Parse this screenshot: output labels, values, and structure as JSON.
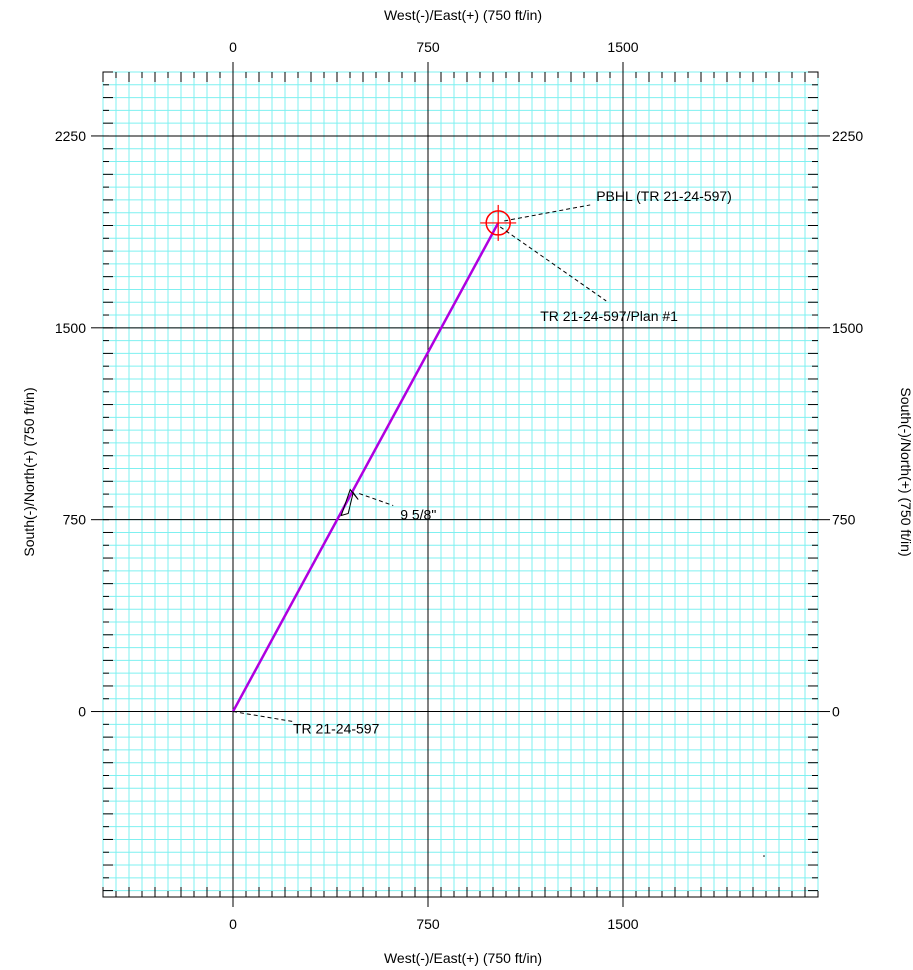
{
  "chart_data": {
    "type": "line",
    "title": "",
    "xlabel_top": "West(-)/East(+) (750 ft/in)",
    "xlabel_bottom": "West(-)/East(+) (750 ft/in)",
    "ylabel_left": "South(-)/North(+) (750 ft/in)",
    "ylabel_right": "South(-)/North(+) (750 ft/in)",
    "xlim": [
      -500,
      2250
    ],
    "ylim": [
      -725,
      2500
    ],
    "xticks": [
      0,
      750,
      1500
    ],
    "yticks": [
      0,
      750,
      1500,
      2250
    ],
    "grid": true,
    "colors": {
      "grid_minor": "#7ff0f0",
      "grid_major": "#000000",
      "well_path": "#b000e0",
      "target": "#ff0000"
    },
    "series": [
      {
        "name": "TR 21-24-597/Plan #1",
        "x": [
          0,
          1020
        ],
        "y": [
          0,
          1910
        ]
      }
    ],
    "annotations": [
      {
        "text": "TR 21-24-597",
        "kind": "surface-location",
        "x": 0,
        "y": 0
      },
      {
        "text": "9 5/8\"",
        "kind": "casing-point",
        "x": 470,
        "y": 860
      },
      {
        "text": "PBHL (TR 21-24-597)",
        "kind": "target",
        "x": 1020,
        "y": 1910
      },
      {
        "text": "TR 21-24-597/Plan #1",
        "kind": "plan-label",
        "x": 1020,
        "y": 1910
      }
    ]
  }
}
